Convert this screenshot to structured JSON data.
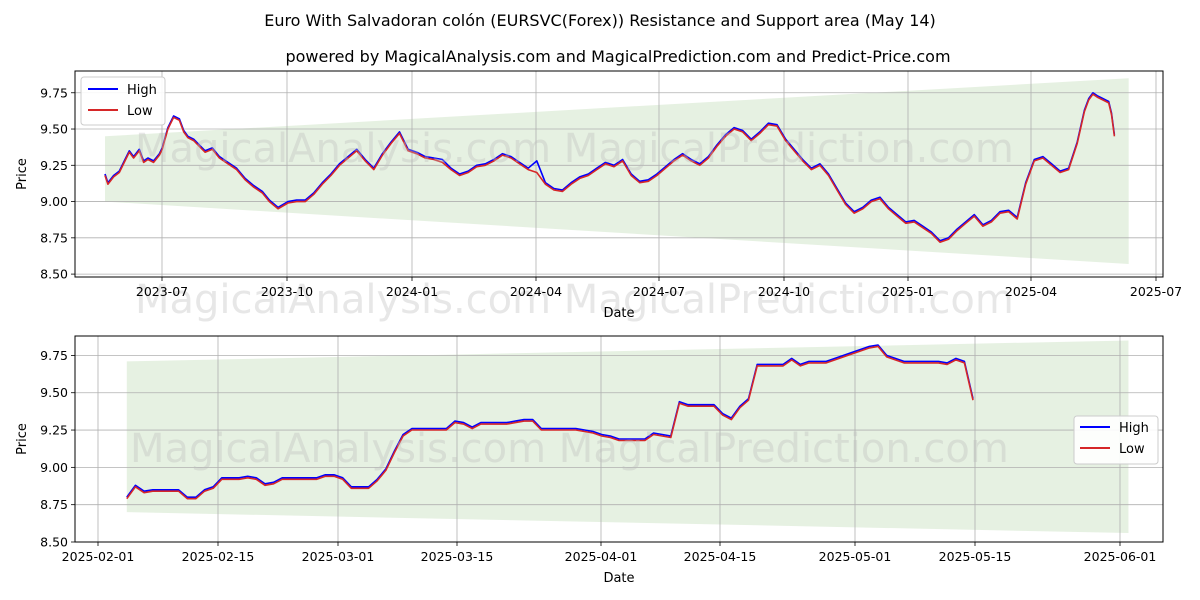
{
  "title": "Euro With Salvadoran colón (EURSVC(Forex)) Resistance and Support area (May 14)",
  "subtitle": "powered by MagicalAnalysis.com and MagicalPrediction.com and Predict-Price.com",
  "watermark": "MagicalAnalysis.com   MagicalPrediction.com",
  "colors": {
    "high": "#0000ff",
    "low": "#d62728",
    "band": "#d8ead3",
    "grid": "#b0b0b0"
  },
  "chart_data": [
    {
      "type": "line",
      "name": "overview",
      "xlabel": "Date",
      "ylabel": "Price",
      "x_tick_labels": [
        "2023-07",
        "2023-10",
        "2024-01",
        "2024-04",
        "2024-07",
        "2024-10",
        "2025-01",
        "2025-04",
        "2025-07"
      ],
      "y_tick_labels": [
        "8.50",
        "8.75",
        "9.00",
        "9.25",
        "9.50",
        "9.75"
      ],
      "x_range": [
        -21,
        740
      ],
      "ylim": [
        8.48,
        9.9
      ],
      "grid": true,
      "legend": {
        "position": "top-left",
        "entries": [
          "High",
          "Low"
        ]
      },
      "band": {
        "x": [
          0,
          716
        ],
        "upper": [
          9.45,
          9.85
        ],
        "lower": [
          9.0,
          8.57
        ]
      },
      "series": [
        {
          "name": "Low",
          "x": [
            0,
            2,
            6,
            10,
            14,
            17,
            20,
            24,
            27,
            30,
            34,
            38,
            40,
            44,
            48,
            52,
            55,
            58,
            62,
            66,
            70,
            75,
            80,
            86,
            92,
            98,
            104,
            110,
            115,
            121,
            128,
            134,
            140,
            146,
            152,
            158,
            164,
            170,
            176,
            182,
            188,
            194,
            200,
            206,
            212,
            218,
            224,
            230,
            236,
            242,
            248,
            254,
            260,
            266,
            272,
            278,
            284,
            290,
            296,
            302,
            308,
            314,
            320,
            326,
            332,
            338,
            344,
            350,
            356,
            362,
            368,
            374,
            380,
            386,
            392,
            398,
            404,
            410,
            416,
            422,
            428,
            434,
            440,
            446,
            452,
            458,
            464,
            470,
            476,
            482,
            488,
            494,
            500,
            506,
            512,
            518,
            524,
            530,
            536,
            542,
            548,
            554,
            560,
            566,
            572,
            578,
            584,
            590,
            596,
            602,
            608,
            614,
            620,
            626,
            632,
            638,
            644,
            650,
            656,
            662,
            668,
            674,
            680,
            685,
            688,
            691,
            694,
            698,
            702,
            704,
            706
          ],
          "values": [
            9.18,
            9.12,
            9.17,
            9.2,
            9.28,
            9.34,
            9.3,
            9.35,
            9.27,
            9.29,
            9.27,
            9.32,
            9.36,
            9.5,
            9.58,
            9.56,
            9.48,
            9.44,
            9.42,
            9.38,
            9.34,
            9.36,
            9.3,
            9.26,
            9.22,
            9.15,
            9.1,
            9.06,
            9.0,
            8.95,
            8.99,
            9.0,
            9.0,
            9.05,
            9.12,
            9.18,
            9.25,
            9.3,
            9.35,
            9.28,
            9.22,
            9.32,
            9.4,
            9.47,
            9.35,
            9.33,
            9.3,
            9.29,
            9.27,
            9.22,
            9.18,
            9.2,
            9.24,
            9.25,
            9.28,
            9.32,
            9.3,
            9.26,
            9.22,
            9.2,
            9.12,
            9.08,
            9.07,
            9.12,
            9.16,
            9.18,
            9.22,
            9.26,
            9.24,
            9.28,
            9.18,
            9.13,
            9.14,
            9.18,
            9.23,
            9.28,
            9.32,
            9.28,
            9.25,
            9.3,
            9.38,
            9.45,
            9.5,
            9.48,
            9.42,
            9.47,
            9.53,
            9.52,
            9.42,
            9.35,
            9.28,
            9.22,
            9.25,
            9.18,
            9.08,
            8.98,
            8.92,
            8.95,
            9.0,
            9.02,
            8.95,
            8.9,
            8.85,
            8.86,
            8.82,
            8.78,
            8.72,
            8.74,
            8.8,
            8.85,
            8.9,
            8.83,
            8.86,
            8.92,
            8.93,
            8.88,
            9.12,
            9.28,
            9.3,
            9.25,
            9.2,
            9.22,
            9.4,
            9.62,
            9.7,
            9.74,
            9.72,
            9.7,
            9.68,
            9.6,
            9.45
          ]
        },
        {
          "name": "High",
          "x": [
            0,
            2,
            6,
            10,
            14,
            17,
            20,
            24,
            27,
            30,
            34,
            38,
            40,
            44,
            48,
            52,
            55,
            58,
            62,
            66,
            70,
            75,
            80,
            86,
            92,
            98,
            104,
            110,
            115,
            121,
            128,
            134,
            140,
            146,
            152,
            158,
            164,
            170,
            176,
            182,
            188,
            194,
            200,
            206,
            212,
            218,
            224,
            230,
            236,
            242,
            248,
            254,
            260,
            266,
            272,
            278,
            284,
            290,
            296,
            302,
            308,
            314,
            320,
            326,
            332,
            338,
            344,
            350,
            356,
            362,
            368,
            374,
            380,
            386,
            392,
            398,
            404,
            410,
            416,
            422,
            428,
            434,
            440,
            446,
            452,
            458,
            464,
            470,
            476,
            482,
            488,
            494,
            500,
            506,
            512,
            518,
            524,
            530,
            536,
            542,
            548,
            554,
            560,
            566,
            572,
            578,
            584,
            590,
            596,
            602,
            608,
            614,
            620,
            626,
            632,
            638,
            644,
            650,
            656,
            662,
            668,
            674,
            680,
            685,
            688,
            691,
            694,
            698,
            702,
            704,
            706
          ],
          "values": [
            9.19,
            9.13,
            9.18,
            9.21,
            9.29,
            9.35,
            9.31,
            9.36,
            9.28,
            9.3,
            9.28,
            9.33,
            9.37,
            9.51,
            9.59,
            9.57,
            9.49,
            9.45,
            9.43,
            9.39,
            9.35,
            9.37,
            9.31,
            9.27,
            9.23,
            9.16,
            9.11,
            9.07,
            9.01,
            8.96,
            9.0,
            9.01,
            9.01,
            9.06,
            9.13,
            9.19,
            9.26,
            9.31,
            9.36,
            9.29,
            9.23,
            9.33,
            9.41,
            9.48,
            9.36,
            9.34,
            9.31,
            9.3,
            9.29,
            9.23,
            9.19,
            9.21,
            9.25,
            9.26,
            9.29,
            9.33,
            9.31,
            9.27,
            9.23,
            9.28,
            9.13,
            9.09,
            9.08,
            9.13,
            9.17,
            9.19,
            9.23,
            9.27,
            9.25,
            9.29,
            9.19,
            9.14,
            9.15,
            9.19,
            9.24,
            9.29,
            9.33,
            9.29,
            9.26,
            9.31,
            9.39,
            9.46,
            9.51,
            9.49,
            9.43,
            9.48,
            9.54,
            9.53,
            9.43,
            9.36,
            9.29,
            9.23,
            9.26,
            9.19,
            9.09,
            8.99,
            8.93,
            8.96,
            9.01,
            9.03,
            8.96,
            8.91,
            8.86,
            8.87,
            8.83,
            8.79,
            8.73,
            8.75,
            8.81,
            8.86,
            8.91,
            8.84,
            8.87,
            8.93,
            8.94,
            8.89,
            9.13,
            9.29,
            9.31,
            9.26,
            9.21,
            9.23,
            9.41,
            9.63,
            9.71,
            9.75,
            9.73,
            9.71,
            9.69,
            9.61,
            9.46
          ]
        }
      ]
    },
    {
      "type": "line",
      "name": "zoom",
      "xlabel": "Date",
      "ylabel": "Price",
      "x_tick_labels": [
        "2025-02-01",
        "2025-02-15",
        "2025-03-01",
        "2025-03-15",
        "2025-04-01",
        "2025-04-15",
        "2025-05-01",
        "2025-05-15",
        "2025-06-01"
      ],
      "y_tick_labels": [
        "8.50",
        "8.75",
        "9.00",
        "9.25",
        "9.50",
        "9.75"
      ],
      "x_range": [
        -6,
        120
      ],
      "ylim": [
        8.5,
        9.88
      ],
      "grid": true,
      "legend": {
        "position": "center-right",
        "entries": [
          "High",
          "Low"
        ]
      },
      "band": {
        "x": [
          0,
          116
        ],
        "upper": [
          9.71,
          9.85
        ],
        "lower": [
          8.7,
          8.56
        ]
      },
      "series": [
        {
          "name": "Low",
          "x": [
            0,
            1,
            2,
            3,
            4,
            5,
            6,
            7,
            8,
            9,
            10,
            11,
            12,
            13,
            14,
            15,
            16,
            17,
            18,
            19,
            20,
            21,
            22,
            23,
            24,
            25,
            26,
            27,
            28,
            29,
            30,
            31,
            32,
            33,
            34,
            35,
            36,
            37,
            38,
            39,
            40,
            41,
            42,
            43,
            44,
            45,
            46,
            47,
            48,
            49,
            50,
            51,
            52,
            53,
            54,
            55,
            56,
            57,
            58,
            59,
            60,
            61,
            62,
            63,
            64,
            65,
            66,
            67,
            68,
            69,
            70,
            71,
            72,
            73,
            74,
            75,
            76,
            77,
            78,
            79,
            80,
            81,
            82,
            83,
            84,
            85,
            86,
            87,
            88,
            89,
            90,
            91,
            92,
            93,
            94,
            95,
            96,
            97,
            98
          ],
          "values": [
            8.79,
            8.87,
            8.83,
            8.84,
            8.84,
            8.84,
            8.84,
            8.79,
            8.79,
            8.84,
            8.86,
            8.92,
            8.92,
            8.92,
            8.93,
            8.92,
            8.88,
            8.89,
            8.92,
            8.92,
            8.92,
            8.92,
            8.92,
            8.94,
            8.94,
            8.92,
            8.86,
            8.86,
            8.86,
            8.91,
            8.98,
            9.1,
            9.21,
            9.25,
            9.25,
            9.25,
            9.25,
            9.25,
            9.3,
            9.29,
            9.26,
            9.29,
            9.29,
            9.29,
            9.29,
            9.3,
            9.31,
            9.31,
            9.25,
            9.25,
            9.25,
            9.25,
            9.25,
            9.24,
            9.23,
            9.21,
            9.2,
            9.18,
            9.18,
            9.18,
            9.18,
            9.22,
            9.21,
            9.2,
            9.43,
            9.41,
            9.41,
            9.41,
            9.41,
            9.35,
            9.32,
            9.4,
            9.45,
            9.68,
            9.68,
            9.68,
            9.68,
            9.72,
            9.68,
            9.7,
            9.7,
            9.7,
            9.72,
            9.74,
            9.76,
            9.78,
            9.8,
            9.81,
            9.74,
            9.72,
            9.7,
            9.7,
            9.7,
            9.7,
            9.7,
            9.69,
            9.72,
            9.7,
            9.45
          ]
        },
        {
          "name": "High",
          "x": [
            0,
            1,
            2,
            3,
            4,
            5,
            6,
            7,
            8,
            9,
            10,
            11,
            12,
            13,
            14,
            15,
            16,
            17,
            18,
            19,
            20,
            21,
            22,
            23,
            24,
            25,
            26,
            27,
            28,
            29,
            30,
            31,
            32,
            33,
            34,
            35,
            36,
            37,
            38,
            39,
            40,
            41,
            42,
            43,
            44,
            45,
            46,
            47,
            48,
            49,
            50,
            51,
            52,
            53,
            54,
            55,
            56,
            57,
            58,
            59,
            60,
            61,
            62,
            63,
            64,
            65,
            66,
            67,
            68,
            69,
            70,
            71,
            72,
            73,
            74,
            75,
            76,
            77,
            78,
            79,
            80,
            81,
            82,
            83,
            84,
            85,
            86,
            87,
            88,
            89,
            90,
            91,
            92,
            93,
            94,
            95,
            96,
            97,
            98
          ],
          "values": [
            8.8,
            8.88,
            8.84,
            8.85,
            8.85,
            8.85,
            8.85,
            8.8,
            8.8,
            8.85,
            8.87,
            8.93,
            8.93,
            8.93,
            8.94,
            8.93,
            8.89,
            8.9,
            8.93,
            8.93,
            8.93,
            8.93,
            8.93,
            8.95,
            8.95,
            8.93,
            8.87,
            8.87,
            8.87,
            8.92,
            8.99,
            9.11,
            9.22,
            9.26,
            9.26,
            9.26,
            9.26,
            9.26,
            9.31,
            9.3,
            9.27,
            9.3,
            9.3,
            9.3,
            9.3,
            9.31,
            9.32,
            9.32,
            9.26,
            9.26,
            9.26,
            9.26,
            9.26,
            9.25,
            9.24,
            9.22,
            9.21,
            9.19,
            9.19,
            9.19,
            9.19,
            9.23,
            9.22,
            9.21,
            9.44,
            9.42,
            9.42,
            9.42,
            9.42,
            9.36,
            9.33,
            9.41,
            9.46,
            9.69,
            9.69,
            9.69,
            9.69,
            9.73,
            9.69,
            9.71,
            9.71,
            9.71,
            9.73,
            9.75,
            9.77,
            9.79,
            9.81,
            9.82,
            9.75,
            9.73,
            9.71,
            9.71,
            9.71,
            9.71,
            9.71,
            9.7,
            9.73,
            9.71,
            9.46
          ]
        }
      ]
    }
  ]
}
